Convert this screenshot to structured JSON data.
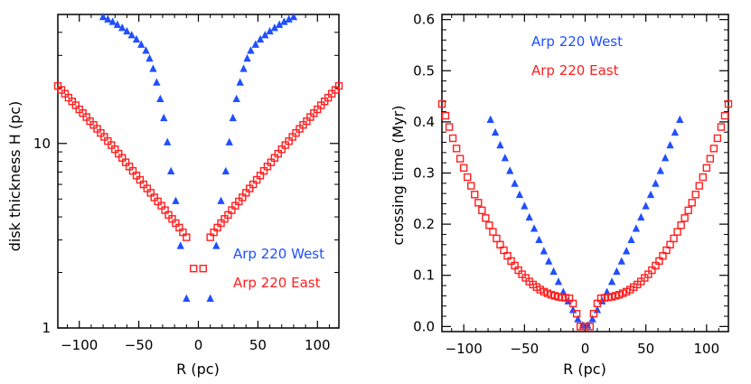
{
  "chart_data": [
    {
      "type": "scatter",
      "xlabel": "R (pc)",
      "ylabel": "disk thickness H (pc)",
      "xlim": [
        -118,
        118
      ],
      "ylim": [
        1,
        50
      ],
      "yscale": "log",
      "xticks": [
        -100,
        -50,
        0,
        50,
        100
      ],
      "xtick_labels": [
        "−100",
        "−50",
        "0",
        "50",
        "100"
      ],
      "yticks": [
        1,
        10
      ],
      "ytick_labels": [
        "1",
        "10"
      ],
      "legend_position": "lower-right",
      "series": [
        {
          "name": "Arp 220 West",
          "color": "#1f4fff",
          "marker": "triangle",
          "x": [
            -10,
            -15,
            -19,
            -23,
            -26,
            -29,
            -32,
            -35,
            -38,
            -41,
            -44,
            -48,
            -52,
            -56,
            -60,
            -64,
            -68,
            -72,
            -76,
            -80,
            10,
            15,
            19,
            23,
            26,
            29,
            32,
            35,
            38,
            41,
            44,
            48,
            52,
            56,
            60,
            64,
            68,
            72,
            76,
            80
          ],
          "y": [
            1.45,
            2.8,
            4.9,
            7.1,
            10.2,
            13.8,
            17.5,
            21.5,
            25.5,
            29.0,
            32.0,
            34.5,
            36.8,
            38.8,
            40.7,
            42.5,
            44.2,
            45.8,
            47.3,
            48.7,
            1.45,
            2.8,
            4.9,
            7.1,
            10.2,
            13.8,
            17.5,
            21.5,
            25.5,
            29.0,
            32.0,
            34.5,
            36.8,
            38.8,
            40.7,
            42.5,
            44.2,
            45.8,
            47.3,
            48.7
          ]
        },
        {
          "name": "Arp 220 East",
          "color": "#ff1f1f",
          "marker": "square",
          "x": [
            -4,
            -10,
            -13,
            -16,
            -19,
            -22,
            -25,
            -28,
            -31,
            -34,
            -37,
            -40,
            -43,
            -46,
            -49,
            -52,
            -55,
            -58,
            -61,
            -64,
            -67,
            -70,
            -73,
            -76,
            -79,
            -82,
            -85,
            -88,
            -91,
            -94,
            -97,
            -100,
            -103,
            -106,
            -109,
            -112,
            -115,
            -118,
            4,
            10,
            13,
            16,
            19,
            22,
            25,
            28,
            31,
            34,
            37,
            40,
            43,
            46,
            49,
            52,
            55,
            58,
            61,
            64,
            67,
            70,
            73,
            76,
            79,
            82,
            85,
            88,
            91,
            94,
            97,
            100,
            103,
            106,
            109,
            112,
            115,
            118
          ],
          "y": [
            2.1,
            3.1,
            3.3,
            3.5,
            3.7,
            3.9,
            4.1,
            4.35,
            4.6,
            4.85,
            5.1,
            5.4,
            5.7,
            6.0,
            6.35,
            6.7,
            7.1,
            7.5,
            7.9,
            8.35,
            8.8,
            9.3,
            9.8,
            10.3,
            10.85,
            11.4,
            12.0,
            12.6,
            13.2,
            13.9,
            14.6,
            15.3,
            16.1,
            16.9,
            17.7,
            18.6,
            19.5,
            20.5,
            2.1,
            3.1,
            3.3,
            3.5,
            3.7,
            3.9,
            4.1,
            4.35,
            4.6,
            4.85,
            5.1,
            5.4,
            5.7,
            6.0,
            6.35,
            6.7,
            7.1,
            7.5,
            7.9,
            8.35,
            8.8,
            9.3,
            9.8,
            10.3,
            10.85,
            11.4,
            12.0,
            12.6,
            13.2,
            13.9,
            14.6,
            15.3,
            16.1,
            16.9,
            17.7,
            18.6,
            19.5,
            20.5
          ]
        }
      ]
    },
    {
      "type": "scatter",
      "xlabel": "R (pc)",
      "ylabel": "crossing time (Myr)",
      "xlim": [
        -118,
        118
      ],
      "ylim": [
        -0.01,
        0.61
      ],
      "yscale": "linear",
      "xticks": [
        -100,
        -50,
        0,
        50,
        100
      ],
      "xtick_labels": [
        "−100",
        "−50",
        "0",
        "50",
        "100"
      ],
      "yticks": [
        0.0,
        0.1,
        0.2,
        0.3,
        0.4,
        0.5,
        0.6
      ],
      "ytick_labels": [
        "0.0",
        "0.1",
        "0.2",
        "0.3",
        "0.4",
        "0.5",
        "0.6"
      ],
      "legend_position": "top-left",
      "series": [
        {
          "name": "Arp 220 West",
          "color": "#1f4fff",
          "marker": "triangle",
          "x": [
            -78,
            -74,
            -70,
            -66,
            -62,
            -58,
            -54,
            -50,
            -46,
            -42,
            -38,
            -34,
            -30,
            -26,
            -22,
            -18,
            -14,
            -10,
            -6,
            -2,
            2,
            6,
            10,
            14,
            18,
            22,
            26,
            30,
            34,
            38,
            42,
            46,
            50,
            54,
            58,
            62,
            66,
            70,
            74,
            78
          ],
          "y": [
            0.405,
            0.38,
            0.355,
            0.33,
            0.305,
            0.28,
            0.258,
            0.236,
            0.214,
            0.192,
            0.17,
            0.148,
            0.128,
            0.108,
            0.088,
            0.068,
            0.05,
            0.033,
            0.015,
            0.003,
            0.003,
            0.015,
            0.033,
            0.05,
            0.068,
            0.088,
            0.108,
            0.128,
            0.148,
            0.17,
            0.192,
            0.214,
            0.236,
            0.258,
            0.28,
            0.305,
            0.33,
            0.355,
            0.38,
            0.405
          ]
        },
        {
          "name": "Arp 220 East",
          "color": "#ff1f1f",
          "marker": "square",
          "x": [
            -118,
            -115,
            -112,
            -109,
            -106,
            -103,
            -100,
            -97,
            -94,
            -91,
            -88,
            -85,
            -82,
            -79,
            -76,
            -73,
            -70,
            -67,
            -64,
            -61,
            -58,
            -55,
            -52,
            -49,
            -46,
            -43,
            -40,
            -37,
            -34,
            -31,
            -28,
            -25,
            -22,
            -19,
            -16,
            -13,
            -10,
            -7,
            -4,
            -1,
            1,
            4,
            7,
            10,
            13,
            16,
            19,
            22,
            25,
            28,
            31,
            34,
            37,
            40,
            43,
            46,
            49,
            52,
            55,
            58,
            61,
            64,
            67,
            70,
            73,
            76,
            79,
            82,
            85,
            88,
            91,
            94,
            97,
            100,
            103,
            106,
            109,
            112,
            115,
            118
          ],
          "y": [
            0.435,
            0.412,
            0.39,
            0.368,
            0.348,
            0.328,
            0.31,
            0.292,
            0.275,
            0.258,
            0.242,
            0.227,
            0.212,
            0.198,
            0.185,
            0.172,
            0.16,
            0.149,
            0.138,
            0.128,
            0.119,
            0.11,
            0.102,
            0.095,
            0.088,
            0.082,
            0.077,
            0.072,
            0.068,
            0.065,
            0.062,
            0.06,
            0.058,
            0.057,
            0.056,
            0.055,
            0.045,
            0.025,
            0.0,
            0.0,
            0.0,
            0.0,
            0.025,
            0.045,
            0.055,
            0.056,
            0.057,
            0.058,
            0.06,
            0.062,
            0.065,
            0.068,
            0.072,
            0.077,
            0.082,
            0.088,
            0.095,
            0.102,
            0.11,
            0.119,
            0.128,
            0.138,
            0.149,
            0.16,
            0.172,
            0.185,
            0.198,
            0.212,
            0.227,
            0.242,
            0.258,
            0.275,
            0.292,
            0.31,
            0.328,
            0.348,
            0.368,
            0.39,
            0.412,
            0.435
          ]
        }
      ]
    }
  ]
}
